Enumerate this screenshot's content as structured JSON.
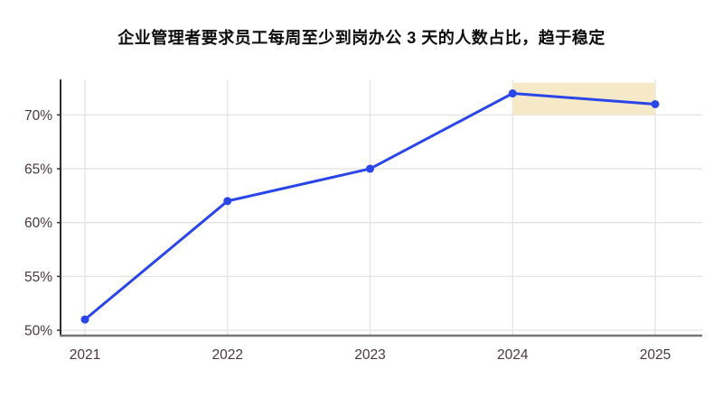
{
  "title": "企业管理者要求员工每周至少到岗办公 3 天的人数占比，趋于稳定",
  "chart_data": {
    "type": "line",
    "title": "企业管理者要求员工每周至少到岗办公 3 天的人数占比，趋于稳定",
    "x": [
      "2021",
      "2022",
      "2023",
      "2024",
      "2025"
    ],
    "values": [
      51,
      62,
      65,
      72,
      71
    ],
    "xlabel": "",
    "ylabel": "",
    "yticks": [
      50,
      55,
      60,
      65,
      70
    ],
    "ytick_suffix": "%",
    "ylim": [
      49.5,
      73.3
    ],
    "grid": true,
    "legend": "none",
    "line_color": "#2a46e8",
    "marker_color": "#2a46e8",
    "grid_color": "#e3e3e3",
    "left_axis_color": "#2e2e2e",
    "bottom_axis_color": "#757575",
    "tick_label_color": "#4a383c",
    "highlight_band": {
      "x_from": "2024",
      "x_to": "2025",
      "y_from": 70,
      "y_to": 73,
      "color": "#f6e9c8"
    }
  }
}
